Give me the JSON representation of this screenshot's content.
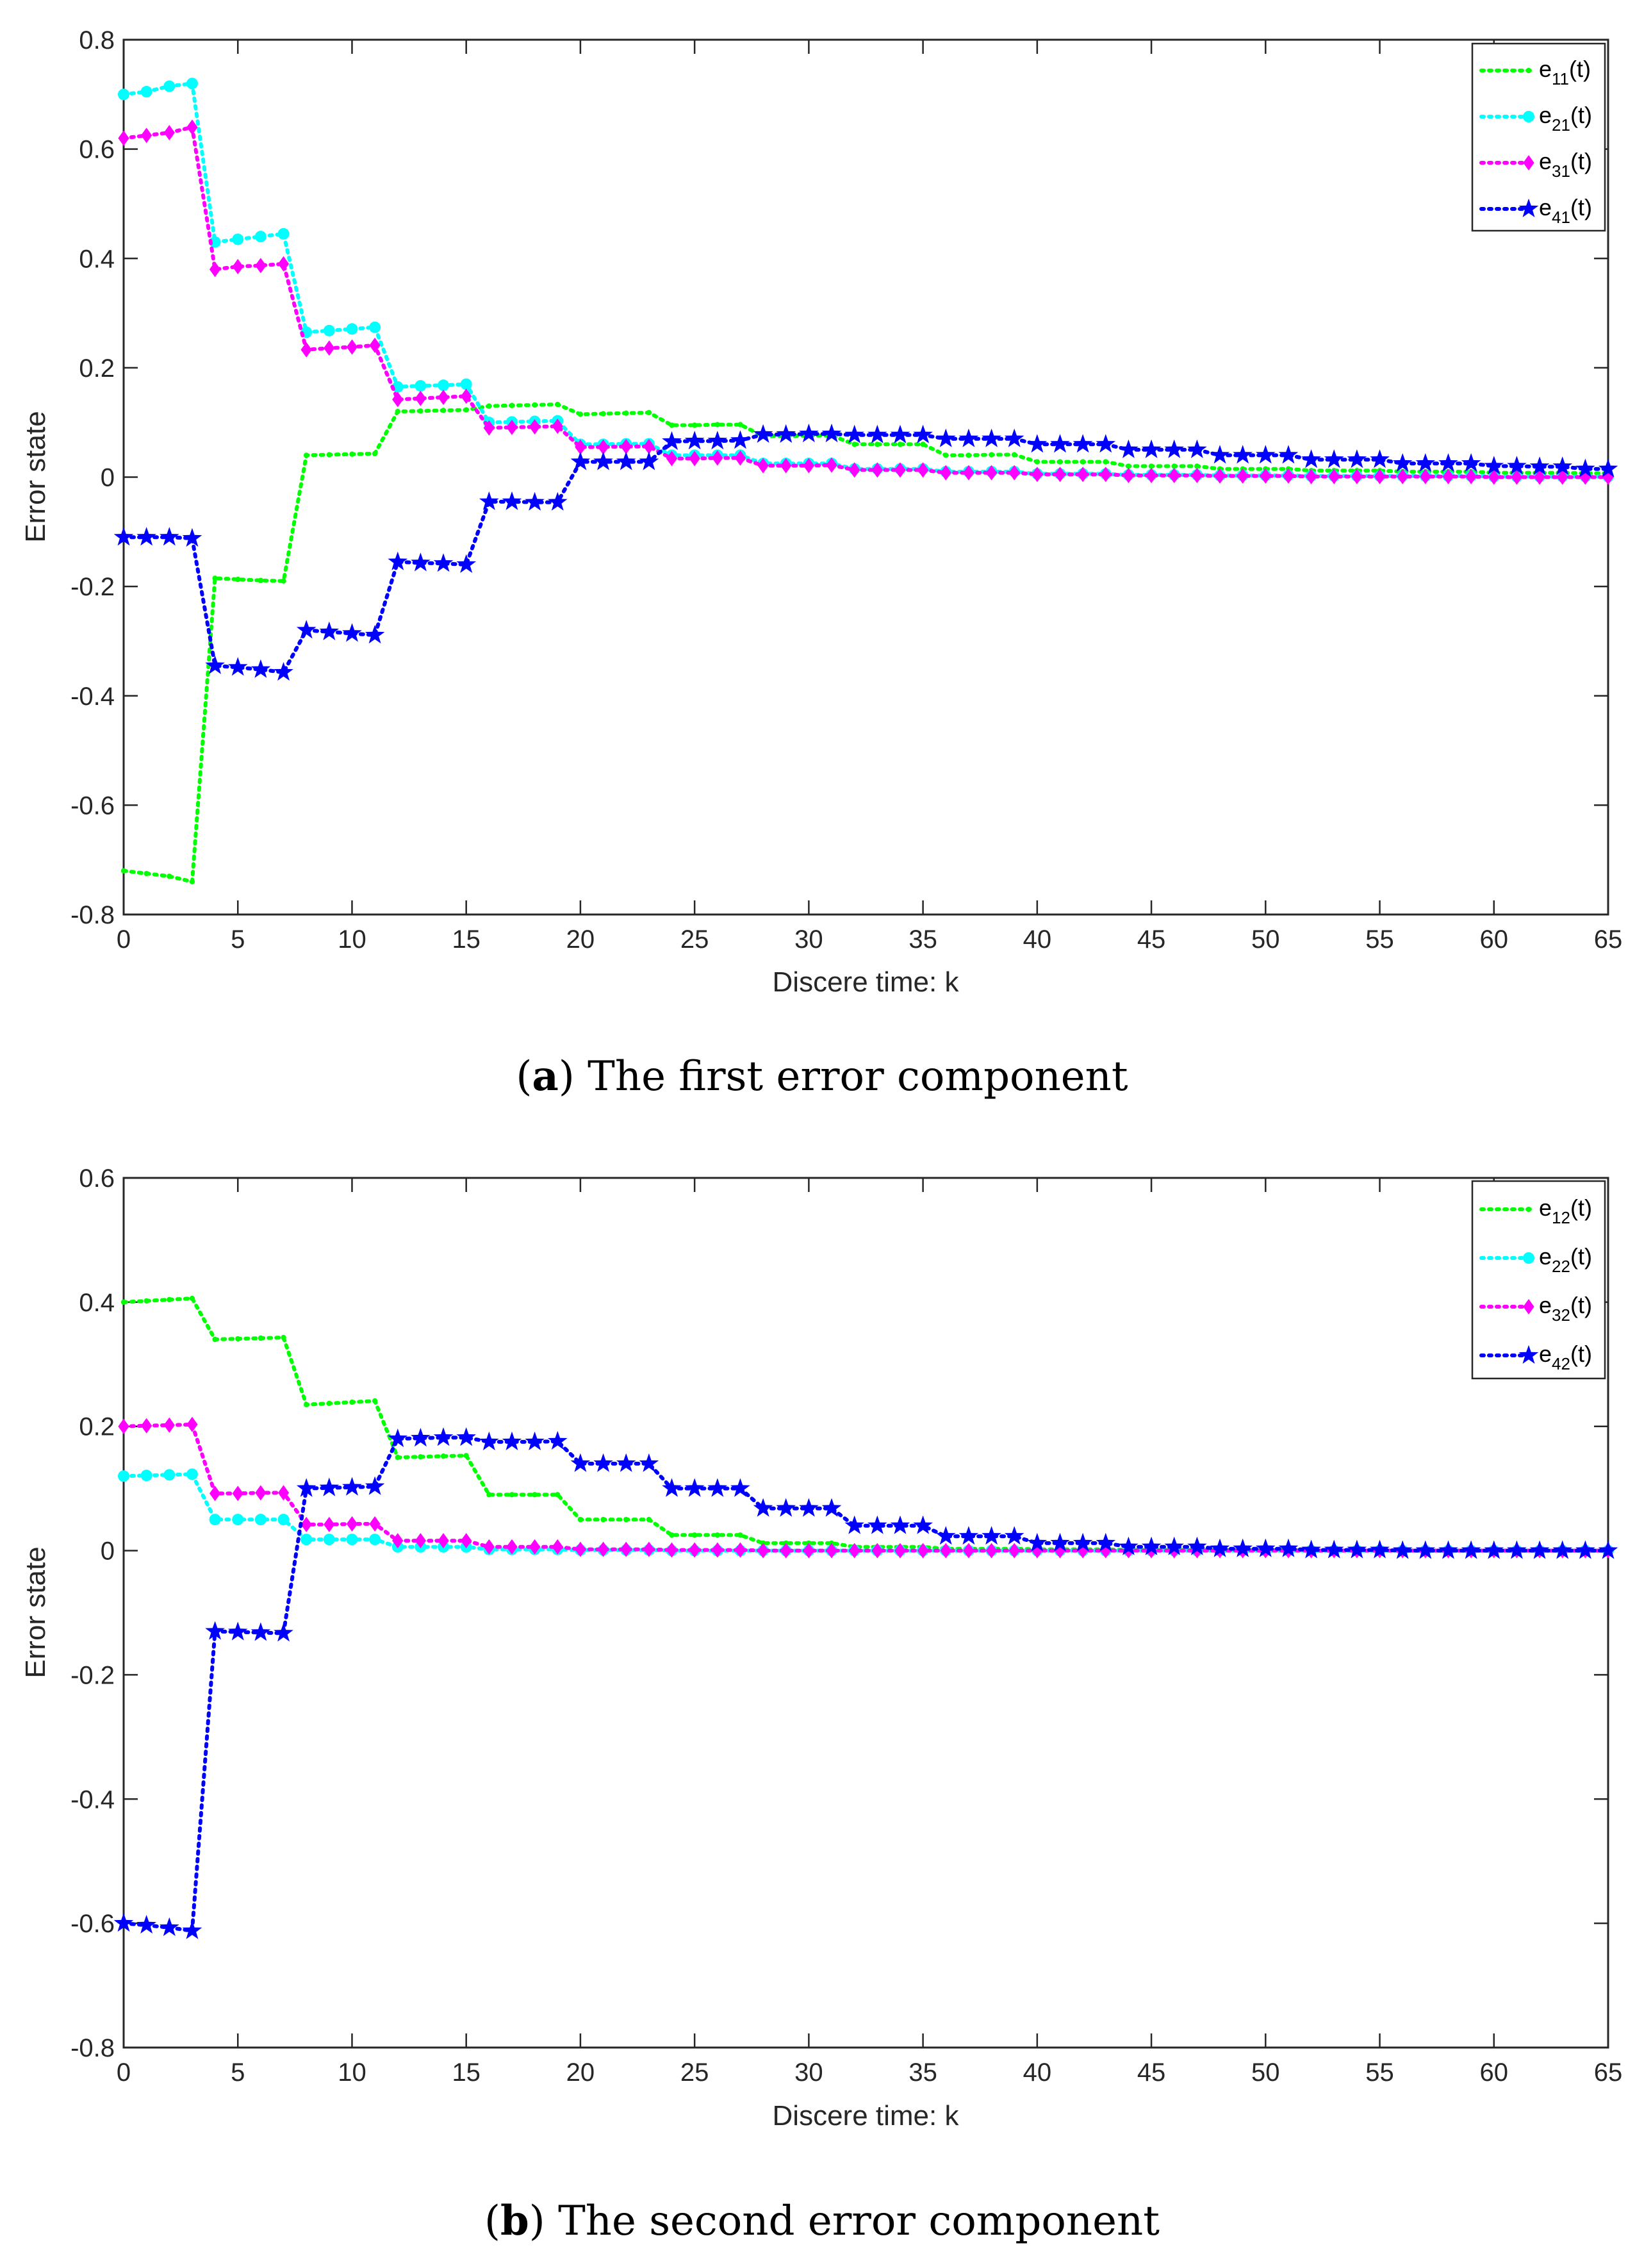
{
  "chart_data": [
    {
      "type": "line",
      "caption_letter": "a",
      "caption_rest": " The first error component",
      "xlabel": "Discere time: k",
      "ylabel": "Error state",
      "xlim": [
        0,
        65
      ],
      "ylim": [
        -0.8,
        0.8
      ],
      "xticks": [
        0,
        5,
        10,
        15,
        20,
        25,
        30,
        35,
        40,
        45,
        50,
        55,
        60,
        65
      ],
      "yticks": [
        -0.8,
        -0.6,
        -0.4,
        -0.2,
        0,
        0.2,
        0.4,
        0.6,
        0.8
      ],
      "ytick_labels": [
        "-0.8",
        "-0.6",
        "-0.4",
        "-0.2",
        "0",
        "0.2",
        "0.4",
        "0.6",
        "0.8"
      ],
      "legend_position": "top-right",
      "series": [
        {
          "name": "e11(t)",
          "label_main": "e",
          "label_sub": "11",
          "label_tail": "(t)",
          "color": "#00ff00",
          "marker": "dot",
          "values": [
            -0.72,
            -0.725,
            -0.73,
            -0.74,
            -0.185,
            -0.187,
            -0.189,
            -0.19,
            0.04,
            0.041,
            0.042,
            0.043,
            0.12,
            0.121,
            0.122,
            0.123,
            0.13,
            0.131,
            0.132,
            0.133,
            0.115,
            0.116,
            0.117,
            0.118,
            0.095,
            0.095,
            0.096,
            0.096,
            0.075,
            0.075,
            0.076,
            0.076,
            0.06,
            0.06,
            0.06,
            0.06,
            0.04,
            0.04,
            0.041,
            0.041,
            0.028,
            0.028,
            0.028,
            0.028,
            0.02,
            0.02,
            0.02,
            0.02,
            0.015,
            0.015,
            0.015,
            0.015,
            0.012,
            0.012,
            0.012,
            0.012,
            0.01,
            0.01,
            0.01,
            0.01,
            0.008,
            0.008,
            0.008,
            0.008,
            0.007,
            0.007
          ]
        },
        {
          "name": "e21(t)",
          "label_main": "e",
          "label_sub": "21",
          "label_tail": "(t)",
          "color": "#00ffff",
          "marker": "circle",
          "values": [
            0.7,
            0.705,
            0.715,
            0.72,
            0.43,
            0.435,
            0.44,
            0.445,
            0.265,
            0.268,
            0.271,
            0.274,
            0.165,
            0.167,
            0.168,
            0.17,
            0.1,
            0.101,
            0.102,
            0.103,
            0.06,
            0.06,
            0.061,
            0.061,
            0.04,
            0.04,
            0.04,
            0.04,
            0.025,
            0.025,
            0.025,
            0.025,
            0.015,
            0.015,
            0.015,
            0.015,
            0.01,
            0.01,
            0.01,
            0.01,
            0.006,
            0.006,
            0.006,
            0.006,
            0.004,
            0.004,
            0.004,
            0.004,
            0.003,
            0.003,
            0.003,
            0.003,
            0.002,
            0.002,
            0.002,
            0.002,
            0.002,
            0.002,
            0.002,
            0.002,
            0.001,
            0.001,
            0.001,
            0.001,
            0.001,
            0.001
          ]
        },
        {
          "name": "e31(t)",
          "label_main": "e",
          "label_sub": "31",
          "label_tail": "(t)",
          "color": "#ff00ff",
          "marker": "diamond",
          "values": [
            0.62,
            0.625,
            0.63,
            0.64,
            0.38,
            0.385,
            0.387,
            0.39,
            0.233,
            0.236,
            0.238,
            0.241,
            0.142,
            0.144,
            0.146,
            0.148,
            0.09,
            0.091,
            0.092,
            0.093,
            0.055,
            0.055,
            0.056,
            0.056,
            0.034,
            0.034,
            0.035,
            0.035,
            0.021,
            0.021,
            0.021,
            0.022,
            0.013,
            0.013,
            0.013,
            0.013,
            0.008,
            0.008,
            0.008,
            0.008,
            0.005,
            0.005,
            0.005,
            0.005,
            0.003,
            0.003,
            0.003,
            0.003,
            0.002,
            0.002,
            0.002,
            0.002,
            0.001,
            0.001,
            0.001,
            0.001,
            0.001,
            0.001,
            0.001,
            0.001,
            0.0,
            0.0,
            0.0,
            0.0,
            0.0,
            0.0
          ]
        },
        {
          "name": "e41(t)",
          "label_main": "e",
          "label_sub": "41",
          "label_tail": "(t)",
          "color": "#0000ff",
          "marker": "star",
          "values": [
            -0.11,
            -0.11,
            -0.11,
            -0.112,
            -0.345,
            -0.348,
            -0.352,
            -0.357,
            -0.28,
            -0.283,
            -0.286,
            -0.289,
            -0.155,
            -0.157,
            -0.158,
            -0.16,
            -0.045,
            -0.045,
            -0.046,
            -0.046,
            0.028,
            0.028,
            0.028,
            0.028,
            0.065,
            0.066,
            0.066,
            0.067,
            0.078,
            0.078,
            0.079,
            0.079,
            0.077,
            0.077,
            0.077,
            0.077,
            0.07,
            0.07,
            0.07,
            0.07,
            0.06,
            0.06,
            0.06,
            0.06,
            0.05,
            0.05,
            0.05,
            0.05,
            0.04,
            0.04,
            0.04,
            0.04,
            0.032,
            0.032,
            0.032,
            0.032,
            0.025,
            0.025,
            0.025,
            0.025,
            0.02,
            0.02,
            0.019,
            0.019,
            0.015,
            0.015
          ]
        }
      ]
    },
    {
      "type": "line",
      "caption_letter": "b",
      "caption_rest": " The second error component",
      "xlabel": "Discere time: k",
      "ylabel": "Error state",
      "xlim": [
        0,
        65
      ],
      "ylim": [
        -0.8,
        0.6
      ],
      "xticks": [
        0,
        5,
        10,
        15,
        20,
        25,
        30,
        35,
        40,
        45,
        50,
        55,
        60,
        65
      ],
      "yticks": [
        -0.8,
        -0.6,
        -0.4,
        -0.2,
        0,
        0.2,
        0.4,
        0.6
      ],
      "ytick_labels": [
        "-0.8",
        "-0.6",
        "-0.4",
        "-0.2",
        "0",
        "0.2",
        "0.4",
        "0.6"
      ],
      "legend_position": "top-right",
      "series": [
        {
          "name": "e12(t)",
          "label_main": "e",
          "label_sub": "12",
          "label_tail": "(t)",
          "color": "#00ff00",
          "marker": "dot",
          "values": [
            0.4,
            0.402,
            0.404,
            0.406,
            0.34,
            0.341,
            0.342,
            0.343,
            0.235,
            0.237,
            0.239,
            0.241,
            0.15,
            0.151,
            0.152,
            0.153,
            0.09,
            0.09,
            0.09,
            0.09,
            0.05,
            0.05,
            0.05,
            0.05,
            0.025,
            0.025,
            0.025,
            0.025,
            0.012,
            0.012,
            0.012,
            0.012,
            0.006,
            0.006,
            0.006,
            0.006,
            0.003,
            0.003,
            0.003,
            0.003,
            0.002,
            0.002,
            0.002,
            0.002,
            0.001,
            0.001,
            0.001,
            0.001,
            0.001,
            0.001,
            0.001,
            0.001,
            0.0,
            0.0,
            0.0,
            0.0,
            0.0,
            0.0,
            0.0,
            0.0,
            0.0,
            0.0,
            0.0,
            0.0,
            0.0,
            0.0
          ]
        },
        {
          "name": "e22(t)",
          "label_main": "e",
          "label_sub": "22",
          "label_tail": "(t)",
          "color": "#00ffff",
          "marker": "circle",
          "values": [
            0.12,
            0.121,
            0.122,
            0.123,
            0.05,
            0.05,
            0.05,
            0.05,
            0.018,
            0.018,
            0.018,
            0.018,
            0.006,
            0.006,
            0.006,
            0.006,
            0.002,
            0.002,
            0.002,
            0.002,
            0.001,
            0.001,
            0.001,
            0.001,
            0.0,
            0.0,
            0.0,
            0.0,
            0.0,
            0.0,
            0.0,
            0.0,
            0.0,
            0.0,
            0.0,
            0.0,
            0.0,
            0.0,
            0.0,
            0.0,
            0.0,
            0.0,
            0.0,
            0.0,
            0.0,
            0.0,
            0.0,
            0.0,
            0.0,
            0.0,
            0.0,
            0.0,
            0.0,
            0.0,
            0.0,
            0.0,
            0.0,
            0.0,
            0.0,
            0.0,
            0.0,
            0.0,
            0.0,
            0.0,
            0.0,
            0.0
          ]
        },
        {
          "name": "e32(t)",
          "label_main": "e",
          "label_sub": "32",
          "label_tail": "(t)",
          "color": "#ff00ff",
          "marker": "diamond",
          "values": [
            0.2,
            0.201,
            0.202,
            0.203,
            0.092,
            0.092,
            0.093,
            0.093,
            0.042,
            0.042,
            0.043,
            0.043,
            0.016,
            0.016,
            0.016,
            0.016,
            0.006,
            0.006,
            0.006,
            0.006,
            0.002,
            0.002,
            0.002,
            0.002,
            0.001,
            0.001,
            0.001,
            0.001,
            0.0,
            0.0,
            0.0,
            0.0,
            0.0,
            0.0,
            0.0,
            0.0,
            0.0,
            0.0,
            0.0,
            0.0,
            0.0,
            0.0,
            0.0,
            0.0,
            0.0,
            0.0,
            0.0,
            0.0,
            0.0,
            0.0,
            0.0,
            0.0,
            0.0,
            0.0,
            0.0,
            0.0,
            0.0,
            0.0,
            0.0,
            0.0,
            0.0,
            0.0,
            0.0,
            0.0,
            0.0,
            0.0
          ]
        },
        {
          "name": "e42(t)",
          "label_main": "e",
          "label_sub": "42",
          "label_tail": "(t)",
          "color": "#0000ff",
          "marker": "star",
          "values": [
            -0.6,
            -0.603,
            -0.607,
            -0.612,
            -0.13,
            -0.131,
            -0.132,
            -0.133,
            0.1,
            0.101,
            0.102,
            0.103,
            0.18,
            0.181,
            0.182,
            0.182,
            0.175,
            0.175,
            0.175,
            0.176,
            0.14,
            0.14,
            0.14,
            0.14,
            0.1,
            0.1,
            0.1,
            0.1,
            0.068,
            0.068,
            0.068,
            0.068,
            0.04,
            0.04,
            0.04,
            0.04,
            0.023,
            0.023,
            0.023,
            0.023,
            0.012,
            0.012,
            0.012,
            0.012,
            0.006,
            0.006,
            0.006,
            0.006,
            0.003,
            0.003,
            0.003,
            0.003,
            0.001,
            0.001,
            0.001,
            0.001,
            0.0,
            0.0,
            0.0,
            0.0,
            0.0,
            0.0,
            0.0,
            0.0,
            0.0,
            0.0
          ]
        }
      ]
    }
  ]
}
